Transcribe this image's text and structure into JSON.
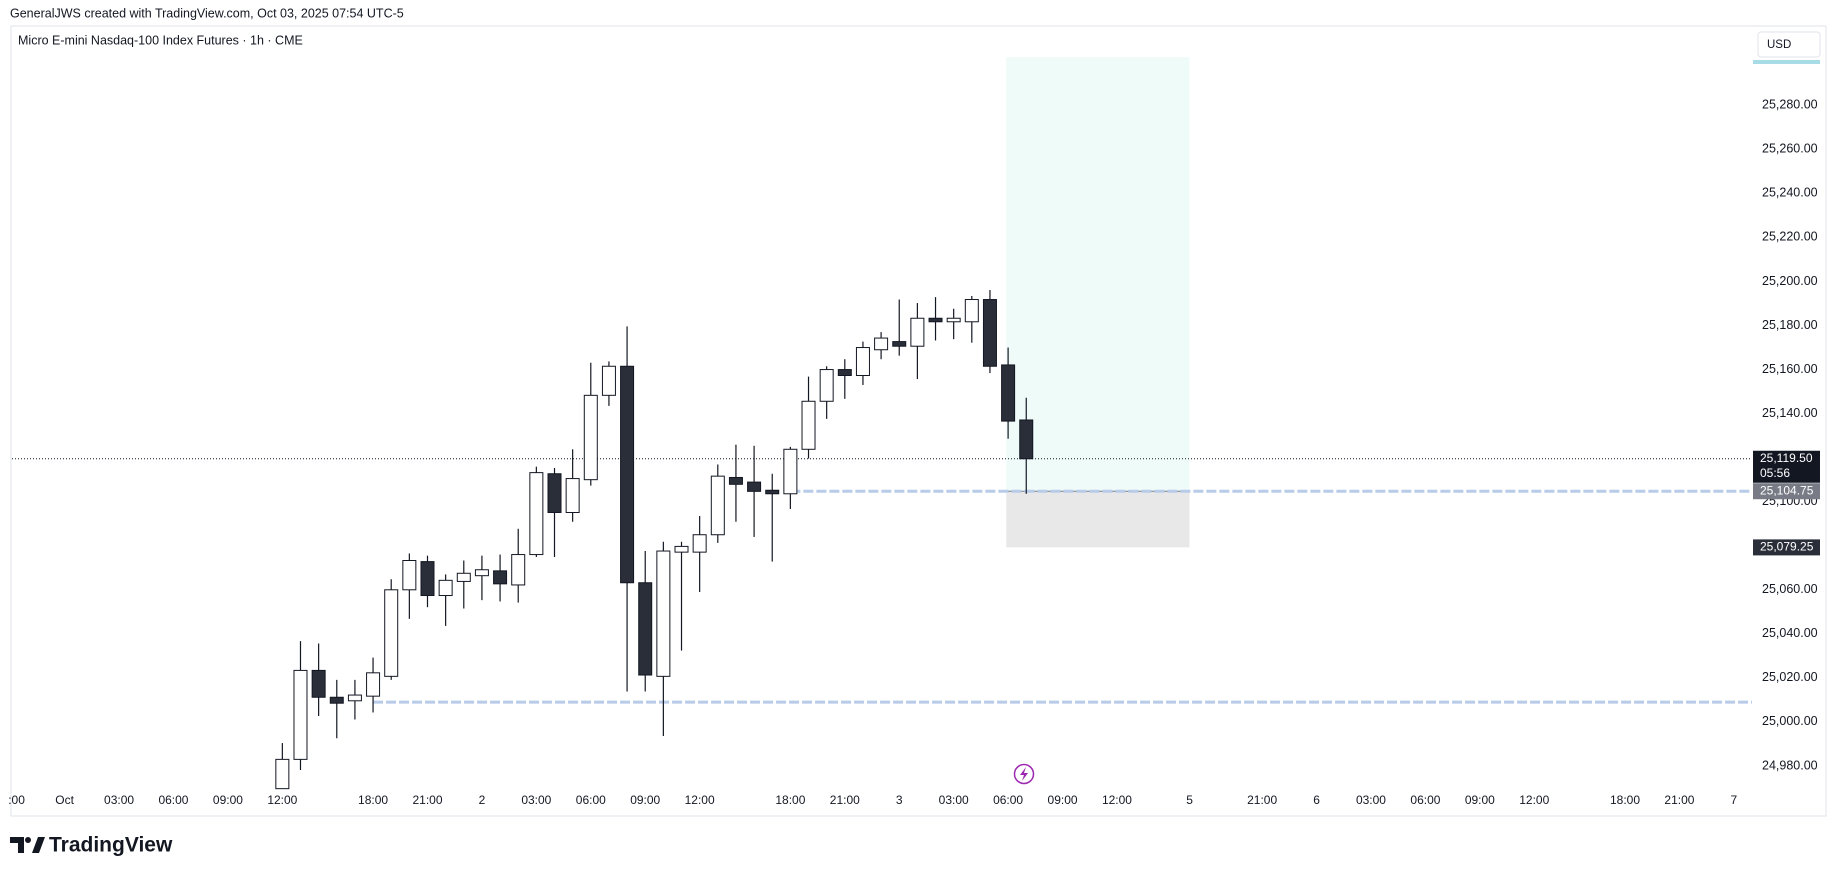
{
  "header": {
    "attribution": "GeneralJWS created with TradingView.com, Oct 03, 2025 07:54 UTC-5",
    "symbol": "Micro E-mini Nasdaq-100 Index Futures · 1h · CME",
    "currency": "USD",
    "brand": "TradingView"
  },
  "chart_data": {
    "type": "candlestick",
    "x": [
      12,
      13,
      14,
      15,
      16,
      17,
      18,
      19,
      20,
      21,
      22,
      23,
      24,
      25,
      26,
      27,
      28,
      29,
      30,
      31,
      32,
      33,
      34,
      35,
      36,
      37,
      38,
      39,
      40,
      41,
      42,
      43,
      44,
      45,
      46,
      47,
      48,
      49,
      50,
      51,
      52,
      53
    ],
    "open": [
      24969.7,
      24983,
      25023.4,
      25011.2,
      25009.6,
      25011.7,
      25020.7,
      25060,
      25072.8,
      25057.4,
      25063.8,
      25066.4,
      25068.6,
      25062.2,
      25076,
      25112.7,
      25095.1,
      25110,
      25148.3,
      25161.5,
      25063.2,
      25020.7,
      25077.1,
      25077.1,
      25085,
      25111,
      25108.9,
      25105.2,
      25103.6,
      25123.8,
      25145.6,
      25160,
      25157.3,
      25169,
      25172.7,
      25170.6,
      25183.3,
      25181.7,
      25181.7,
      25191.8,
      25162.1,
      25137.1
    ],
    "high": [
      24990.4,
      25036.7,
      25035.6,
      25019.1,
      25019.1,
      25029.2,
      25064.8,
      25076.5,
      25075.5,
      25067,
      25073.3,
      25075.5,
      25076,
      25087.7,
      25115.9,
      25115.3,
      25123.8,
      25163.1,
      25163.7,
      25179.6,
      25077.6,
      25081.8,
      25081.8,
      25093.5,
      25116.9,
      25125.9,
      25125.4,
      25112.7,
      25124.9,
      25156.8,
      25161.5,
      25164.7,
      25172.7,
      25177,
      25191.8,
      25190.2,
      25192.9,
      25187.6,
      25193.4,
      25196.1,
      25170,
      25147.2
    ],
    "low": [
      24970,
      24978.2,
      25002.7,
      24992.6,
      25001.1,
      25004.3,
      25019.1,
      25046.8,
      25052.1,
      25043.6,
      25051.5,
      25055.3,
      25054.7,
      25054.2,
      25074.9,
      25074.9,
      25090.9,
      25107.3,
      25143.5,
      25013.8,
      25013.8,
      24993.6,
      25032.4,
      25059,
      25081.3,
      25090.9,
      25084,
      25072.8,
      25096.7,
      25119.6,
      25137.6,
      25146.7,
      25153,
      25164.7,
      25166.3,
      25155.7,
      25173.2,
      25173.8,
      25172.2,
      25158.4,
      25128.6,
      25103.6
    ],
    "close": [
      24983,
      25023.4,
      25011.2,
      25008.5,
      25012.2,
      25022.3,
      25060,
      25073.3,
      25057.4,
      25064.3,
      25067.5,
      25069.1,
      25062.7,
      25076,
      25113.2,
      25095.1,
      25110.5,
      25148.3,
      25161.5,
      25063.2,
      25021.3,
      25077.6,
      25079.7,
      25085,
      25111.6,
      25107.9,
      25104.7,
      25103.6,
      25123.8,
      25145.6,
      25160,
      25157.3,
      25170,
      25174.3,
      25170.6,
      25183.3,
      25181.7,
      25183.3,
      25191.8,
      25161.5,
      25136.6,
      25119.5
    ],
    "up_color": "#ffffff",
    "down_color": "#2a2e39",
    "wick_color": "#131722",
    "xlim": [
      -2.9,
      93
    ],
    "xticks": [
      {
        "value": -2.65,
        "label": ":00"
      },
      {
        "value": 0,
        "label": "Oct"
      },
      {
        "value": 3,
        "label": "03:00"
      },
      {
        "value": 6,
        "label": "06:00"
      },
      {
        "value": 9,
        "label": "09:00"
      },
      {
        "value": 12,
        "label": "12:00"
      },
      {
        "value": 17,
        "label": "18:00"
      },
      {
        "value": 20,
        "label": "21:00"
      },
      {
        "value": 23,
        "label": "2"
      },
      {
        "value": 26,
        "label": "03:00"
      },
      {
        "value": 29,
        "label": "06:00"
      },
      {
        "value": 32,
        "label": "09:00"
      },
      {
        "value": 35,
        "label": "12:00"
      },
      {
        "value": 40,
        "label": "18:00"
      },
      {
        "value": 43,
        "label": "21:00"
      },
      {
        "value": 46,
        "label": "3"
      },
      {
        "value": 49,
        "label": "03:00"
      },
      {
        "value": 52,
        "label": "06:00"
      },
      {
        "value": 55,
        "label": "09:00"
      },
      {
        "value": 58,
        "label": "12:00"
      },
      {
        "value": 62,
        "label": "5"
      },
      {
        "value": 66,
        "label": "21:00"
      },
      {
        "value": 69,
        "label": "6"
      },
      {
        "value": 72,
        "label": "03:00"
      },
      {
        "value": 75,
        "label": "06:00"
      },
      {
        "value": 78,
        "label": "09:00"
      },
      {
        "value": 81,
        "label": "12:00"
      },
      {
        "value": 86,
        "label": "18:00"
      },
      {
        "value": 89,
        "label": "21:00"
      },
      {
        "value": 92,
        "label": "7"
      }
    ],
    "ylim": [
      24970,
      25316
    ],
    "yticks": [
      {
        "value": 24980,
        "label": "24,980.00"
      },
      {
        "value": 25000,
        "label": "25,000.00"
      },
      {
        "value": 25020,
        "label": "25,020.00"
      },
      {
        "value": 25040,
        "label": "25,040.00"
      },
      {
        "value": 25060,
        "label": "25,060.00"
      },
      {
        "value": 25080,
        "label": "25,080.00"
      },
      {
        "value": 25100,
        "label": "25,100.00"
      },
      {
        "value": 25120,
        "label": "25,120.00"
      },
      {
        "value": 25140,
        "label": "25,140.00"
      },
      {
        "value": 25160,
        "label": "25,160.00"
      },
      {
        "value": 25180,
        "label": "25,180.00"
      },
      {
        "value": 25200,
        "label": "25,200.00"
      },
      {
        "value": 25220,
        "label": "25,220.00"
      },
      {
        "value": 25240,
        "label": "25,240.00"
      },
      {
        "value": 25260,
        "label": "25,260.00"
      },
      {
        "value": 25280,
        "label": "25,280.00"
      }
    ],
    "last_price": {
      "value": 25119.5,
      "label": "25,119.50",
      "countdown": "05:56"
    },
    "levels": [
      {
        "value": 25104.75,
        "label": "25,104.75",
        "start": 40
      },
      {
        "value": 25009,
        "start": 17
      }
    ],
    "position": {
      "start": 51.9,
      "end": 62,
      "target": 25301.8,
      "entry": 25104.75,
      "stop": 25079.25,
      "stop_label": "25,079.25",
      "target_color": "#effbf9",
      "stop_color": "#e8e8e9"
    }
  }
}
